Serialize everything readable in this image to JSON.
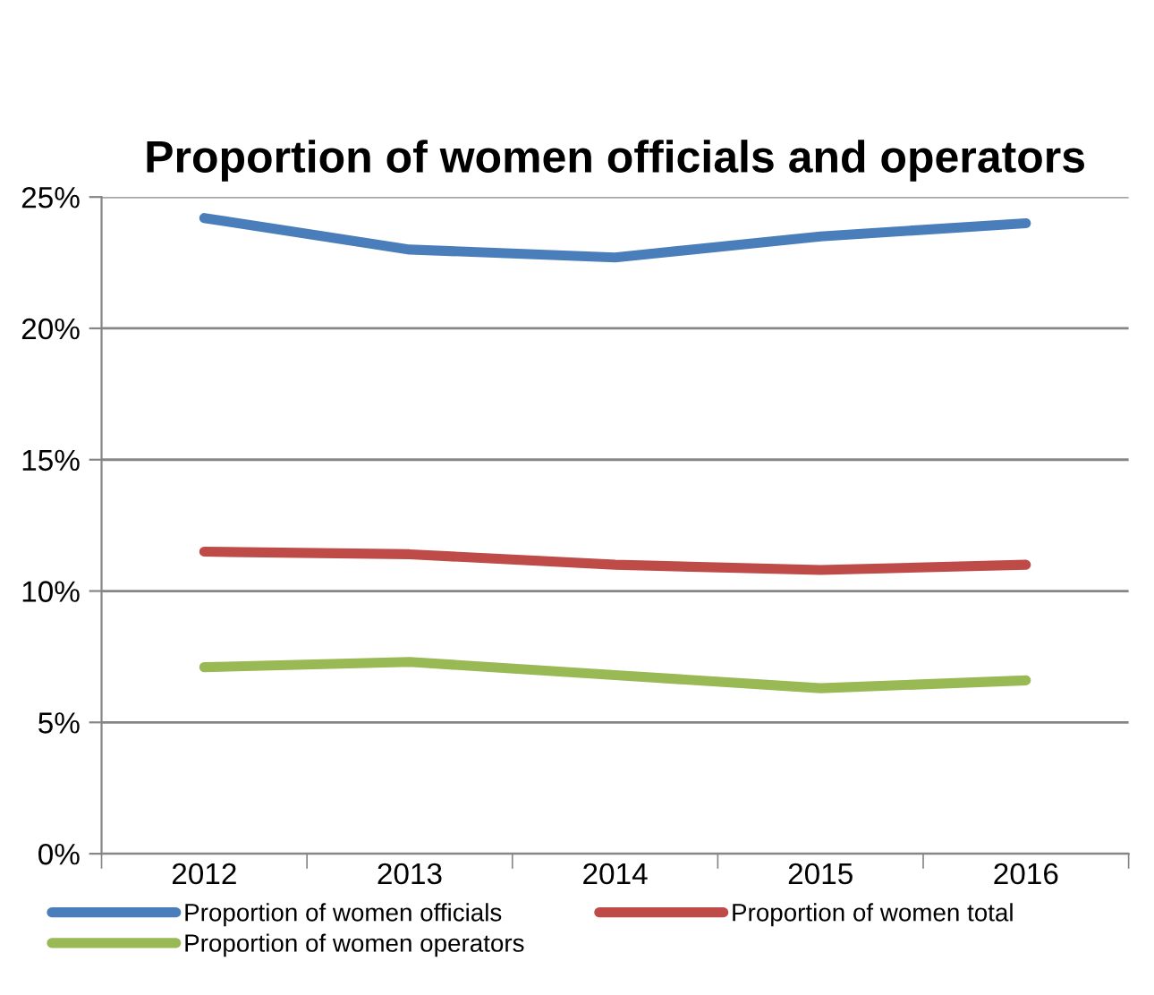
{
  "chart_data": {
    "type": "line",
    "title": "Proportion of women officials and operators",
    "categories": [
      "2012",
      "2013",
      "2014",
      "2015",
      "2016"
    ],
    "series": [
      {
        "name": "Proportion of women officials",
        "color": "#4a7ebb",
        "values": [
          24.2,
          23.0,
          22.7,
          23.5,
          24.0
        ]
      },
      {
        "name": "Proportion of women total",
        "color": "#be4b48",
        "values": [
          11.5,
          11.4,
          11.0,
          10.8,
          11.0
        ]
      },
      {
        "name": "Proportion of women operators",
        "color": "#98b954",
        "values": [
          7.1,
          7.3,
          6.8,
          6.3,
          6.6
        ]
      }
    ],
    "ylim": [
      0,
      25
    ],
    "yticks": [
      {
        "value": 0,
        "label": "0%"
      },
      {
        "value": 5,
        "label": "5%"
      },
      {
        "value": 10,
        "label": "10%"
      },
      {
        "value": 15,
        "label": "15%"
      },
      {
        "value": 20,
        "label": "20%"
      },
      {
        "value": 25,
        "label": "25%"
      }
    ],
    "grid": "y",
    "legend": "bottom",
    "marker": "none",
    "line_style": "solid"
  }
}
